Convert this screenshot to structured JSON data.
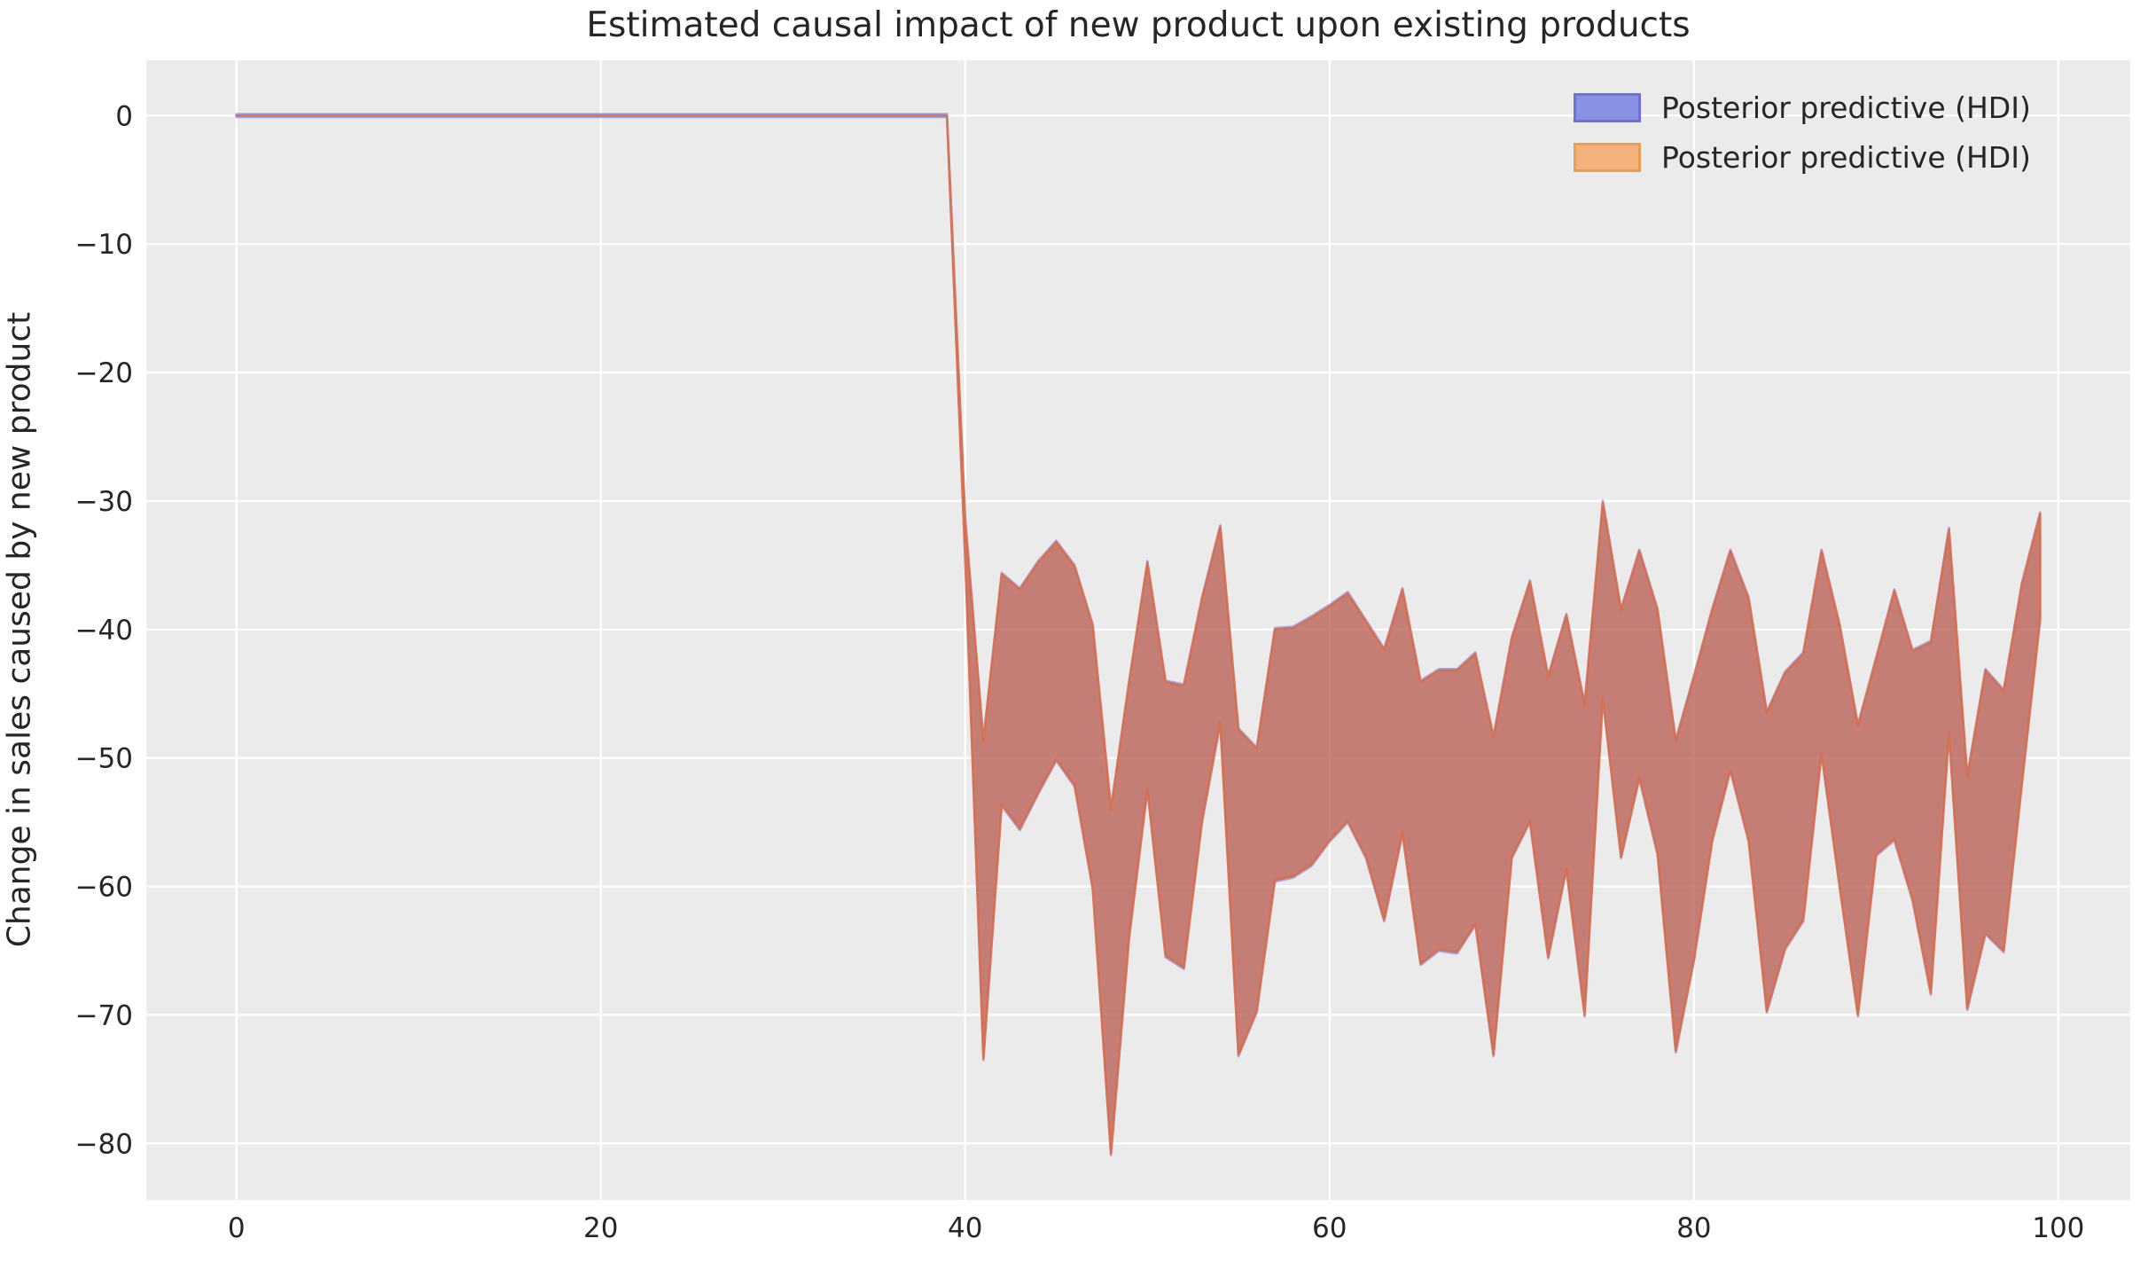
{
  "title": "Estimated causal impact of new product upon existing products",
  "y_axis_label": "Change in sales caused by new product",
  "legend": {
    "entries": [
      {
        "label": "Posterior predictive (HDI)",
        "fill": "#8a90e2",
        "border": "#6b70dd"
      },
      {
        "label": "Posterior predictive (HDI)",
        "fill": "#f5b17d",
        "border": "#eb9c4e"
      }
    ]
  },
  "colors": {
    "figure_background": "#ffffff",
    "axes_background": "#ebebeb",
    "gridline": "#ffffff",
    "text": "#262626",
    "band_fill_blend": "#c08379",
    "band_edge_orange": "#d9795a",
    "band_edge_blue": "#8a8fe0",
    "blue_fill_rgba": "rgba(105,110,220,0.5)",
    "blue_edge_rgba": "rgba(115,120,225,0.55)",
    "orange_fill_rgba": "rgba(210,105,65,0.68)",
    "orange_edge_rgba": "rgba(222,108,66,0.85)"
  },
  "chart_data": {
    "type": "area",
    "description": "Two overlapping posterior-predictive HDI bands (blue and orange) with near-identical envelopes; flat at 0 for x=0..39 (pre-intervention), then a persistent negative causal impact band for x=40..99.",
    "title": "Estimated causal impact of new product upon existing products",
    "xlabel": "",
    "ylabel": "Change in sales caused by new product",
    "xlim": [
      -4.95,
      103.95
    ],
    "ylim": [
      -84.4,
      4.3
    ],
    "grid": true,
    "legend_position": "upper right",
    "xticks": {
      "values": [
        0,
        20,
        40,
        60,
        80,
        100
      ],
      "labels": [
        "0",
        "20",
        "40",
        "60",
        "80",
        "100"
      ]
    },
    "yticks": {
      "values": [
        0,
        -10,
        -20,
        -30,
        -40,
        -50,
        -60,
        -70,
        -80
      ],
      "labels": [
        "0",
        "−10",
        "−20",
        "−30",
        "−40",
        "−50",
        "−60",
        "−70",
        "−80"
      ]
    },
    "x": [
      0,
      1,
      2,
      3,
      4,
      5,
      6,
      7,
      8,
      9,
      10,
      11,
      12,
      13,
      14,
      15,
      16,
      17,
      18,
      19,
      20,
      21,
      22,
      23,
      24,
      25,
      26,
      27,
      28,
      29,
      30,
      31,
      32,
      33,
      34,
      35,
      36,
      37,
      38,
      39,
      40,
      41,
      42,
      43,
      44,
      45,
      46,
      47,
      48,
      49,
      50,
      51,
      52,
      53,
      54,
      55,
      56,
      57,
      58,
      59,
      60,
      61,
      62,
      63,
      64,
      65,
      66,
      67,
      68,
      69,
      70,
      71,
      72,
      73,
      74,
      75,
      76,
      77,
      78,
      79,
      80,
      81,
      82,
      83,
      84,
      85,
      86,
      87,
      88,
      89,
      90,
      91,
      92,
      93,
      94,
      95,
      96,
      97,
      98,
      99
    ],
    "upper": [
      0,
      0,
      0,
      0,
      0,
      0,
      0,
      0,
      0,
      0,
      0,
      0,
      0,
      0,
      0,
      0,
      0,
      0,
      0,
      0,
      0,
      0,
      0,
      0,
      0,
      0,
      0,
      0,
      0,
      0,
      0,
      0,
      0,
      0,
      0,
      0,
      0,
      0,
      0,
      0,
      -31.5,
      -48.7,
      -35.7,
      -36.9,
      -34.8,
      -33.2,
      -35.1,
      -39.7,
      -54.0,
      -44.1,
      -34.8,
      -44.1,
      -44.4,
      -37.6,
      -32.0,
      -47.8,
      -49.3,
      -40.0,
      -39.9,
      -39.1,
      -38.2,
      -37.2,
      -39.4,
      -41.6,
      -36.9,
      -44.1,
      -43.2,
      -43.2,
      -41.9,
      -48.4,
      -40.7,
      -36.3,
      -43.7,
      -38.9,
      -45.9,
      -30.1,
      -38.5,
      -33.9,
      -38.5,
      -48.7,
      -43.7,
      -38.5,
      -33.9,
      -37.6,
      -46.5,
      -43.4,
      -41.9,
      -33.9,
      -39.7,
      -47.5,
      -42.3,
      -37.0,
      -41.7,
      -41.0,
      -32.2,
      -51.5,
      -43.2,
      -44.8,
      -36.5,
      -31.0
    ],
    "lower": [
      0,
      0,
      0,
      0,
      0,
      0,
      0,
      0,
      0,
      0,
      0,
      0,
      0,
      0,
      0,
      0,
      0,
      0,
      0,
      0,
      0,
      0,
      0,
      0,
      0,
      0,
      0,
      0,
      0,
      0,
      0,
      0,
      0,
      0,
      0,
      0,
      0,
      0,
      0,
      0,
      -34.5,
      -73.4,
      -53.6,
      -55.5,
      -52.7,
      -50.1,
      -52.1,
      -60.1,
      -80.8,
      -63.9,
      -52.4,
      -65.4,
      -66.3,
      -54.9,
      -47.2,
      -73.1,
      -69.7,
      -59.5,
      -59.2,
      -58.3,
      -56.4,
      -54.9,
      -57.7,
      -62.6,
      -55.8,
      -66.0,
      -64.9,
      -65.1,
      -62.9,
      -73.1,
      -57.7,
      -54.9,
      -65.5,
      -58.6,
      -70.0,
      -45.3,
      -57.7,
      -51.5,
      -57.4,
      -72.8,
      -65.7,
      -56.4,
      -50.9,
      -56.4,
      -69.7,
      -64.8,
      -62.6,
      -49.6,
      -60.0,
      -70.0,
      -57.5,
      -56.3,
      -61.0,
      -68.3,
      -48.0,
      -69.5,
      -63.6,
      -65.0,
      -52.0,
      -39.2
    ],
    "series": [
      {
        "name": "Posterior predictive (HDI)",
        "color": "blue"
      },
      {
        "name": "Posterior predictive (HDI)",
        "color": "orange"
      }
    ]
  }
}
